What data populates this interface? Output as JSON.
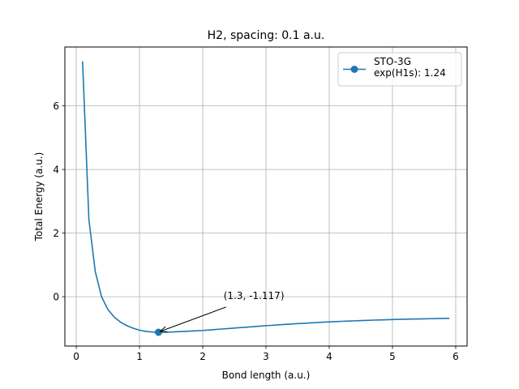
{
  "chart_data": {
    "type": "line",
    "title": "H2, spacing: 0.1 a.u.",
    "xlabel": "Bond length (a.u.)",
    "ylabel": "Total Energy (a.u.)",
    "xlim": [
      -0.18,
      6.18
    ],
    "ylim": [
      -1.55,
      7.85
    ],
    "xticks": [
      0,
      1,
      2,
      3,
      4,
      5,
      6
    ],
    "yticks": [
      0,
      2,
      4,
      6
    ],
    "grid": true,
    "legend_position": "top-right",
    "series": [
      {
        "name": "STO-3G\nexp(H1s): 1.24",
        "color": "#1f77b4",
        "x": [
          0.1,
          0.2,
          0.3,
          0.4,
          0.5,
          0.6,
          0.7,
          0.8,
          0.9,
          1.0,
          1.1,
          1.2,
          1.3,
          1.4,
          1.5,
          1.6,
          1.7,
          1.8,
          1.9,
          2.0,
          2.1,
          2.2,
          2.3,
          2.4,
          2.5,
          2.6,
          2.7,
          2.8,
          2.9,
          3.0,
          3.1,
          3.2,
          3.3,
          3.4,
          3.5,
          3.6,
          3.7,
          3.8,
          3.9,
          4.0,
          4.1,
          4.2,
          4.3,
          4.4,
          4.5,
          4.6,
          4.7,
          4.8,
          4.9,
          5.0,
          5.1,
          5.2,
          5.3,
          5.4,
          5.5,
          5.6,
          5.7,
          5.8,
          5.9
        ],
        "y": [
          7.4,
          2.42,
          0.8,
          0.0,
          -0.4,
          -0.64,
          -0.8,
          -0.91,
          -0.99,
          -1.05,
          -1.09,
          -1.11,
          -1.117,
          -1.115,
          -1.11,
          -1.1,
          -1.09,
          -1.08,
          -1.07,
          -1.06,
          -1.045,
          -1.03,
          -1.015,
          -1.0,
          -0.985,
          -0.97,
          -0.955,
          -0.94,
          -0.925,
          -0.91,
          -0.897,
          -0.884,
          -0.871,
          -0.858,
          -0.846,
          -0.834,
          -0.823,
          -0.812,
          -0.801,
          -0.791,
          -0.782,
          -0.773,
          -0.765,
          -0.757,
          -0.749,
          -0.742,
          -0.735,
          -0.729,
          -0.723,
          -0.717,
          -0.712,
          -0.707,
          -0.702,
          -0.698,
          -0.694,
          -0.69,
          -0.686,
          -0.683,
          -0.68
        ]
      }
    ],
    "marker": {
      "x": 1.3,
      "y": -1.117
    },
    "annotation": {
      "text": "(1.3, -1.117)",
      "text_x": 2.33,
      "text_y": -0.12,
      "arrow_to_x": 1.3,
      "arrow_to_y": -1.117
    }
  }
}
